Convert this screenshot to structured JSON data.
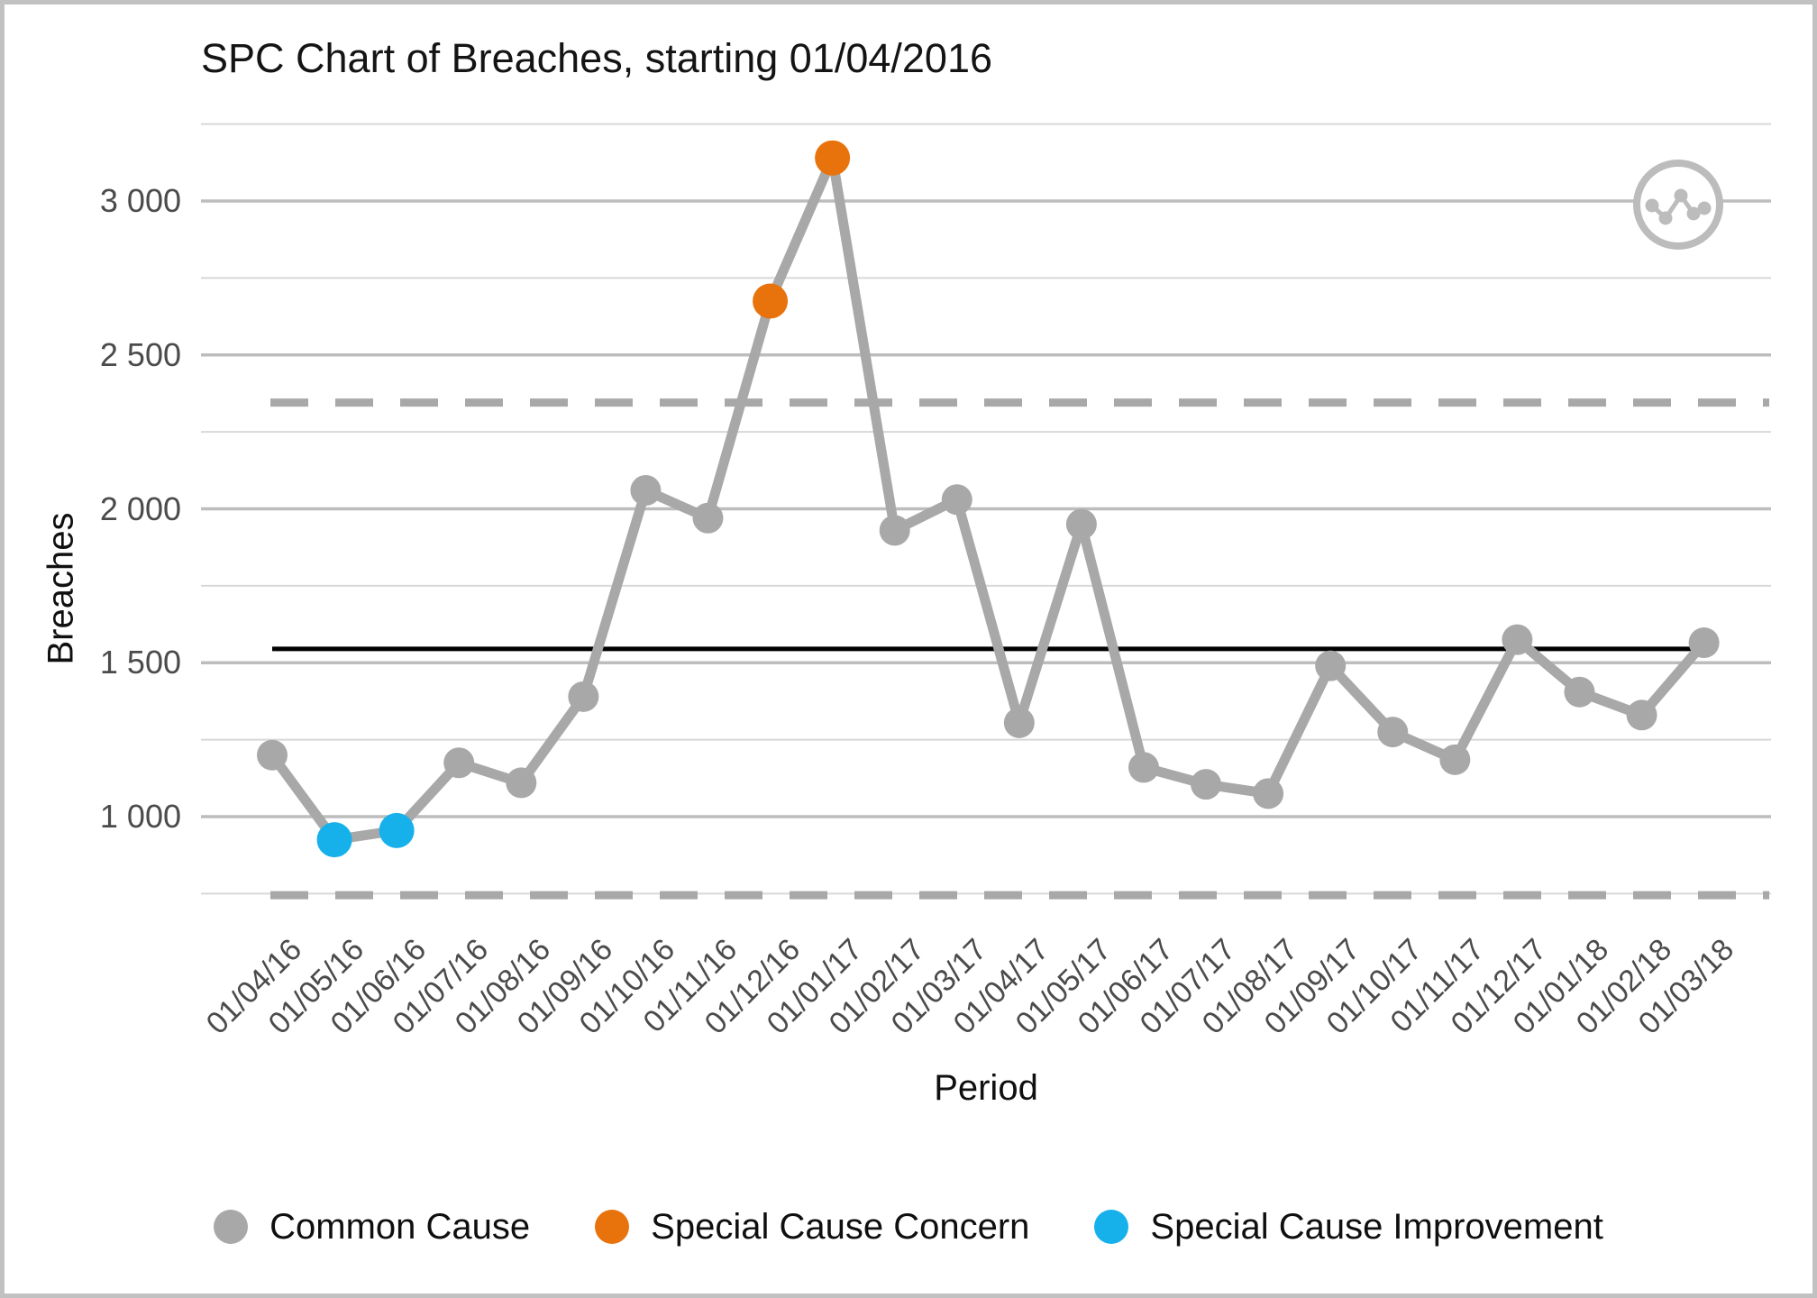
{
  "window": {
    "background": "#ffffff",
    "border_color": "#c1c1c1"
  },
  "chart_data": {
    "type": "line",
    "title": "SPC Chart of Breaches, starting 01/04/2016",
    "xlabel": "Period",
    "ylabel": "Breaches",
    "categories": [
      "01/04/16",
      "01/05/16",
      "01/06/16",
      "01/07/16",
      "01/08/16",
      "01/09/16",
      "01/10/16",
      "01/11/16",
      "01/12/16",
      "01/01/17",
      "01/02/17",
      "01/03/17",
      "01/04/17",
      "01/05/17",
      "01/06/17",
      "01/07/17",
      "01/08/17",
      "01/09/17",
      "01/10/17",
      "01/11/17",
      "01/12/17",
      "01/01/18",
      "01/02/18",
      "01/03/18"
    ],
    "series": [
      {
        "name": "Breaches",
        "values": [
          1200,
          925,
          955,
          1175,
          1110,
          1390,
          2060,
          1970,
          2675,
          3140,
          1930,
          2030,
          1305,
          1950,
          1160,
          1105,
          1075,
          1490,
          1275,
          1185,
          1575,
          1405,
          1330,
          1565
        ]
      }
    ],
    "point_types": [
      "common",
      "improvement",
      "improvement",
      "common",
      "common",
      "common",
      "common",
      "common",
      "concern",
      "concern",
      "common",
      "common",
      "common",
      "common",
      "common",
      "common",
      "common",
      "common",
      "common",
      "common",
      "common",
      "common",
      "common",
      "common"
    ],
    "mean_line": 1545,
    "upper_control_limit": 2345,
    "lower_control_limit": 745,
    "y_axis": {
      "tick_labels": [
        "1 000",
        "1 500",
        "2 000",
        "2 500",
        "3 000"
      ],
      "tick_values": [
        1000,
        1500,
        2000,
        2500,
        3000
      ],
      "minor_gridlines": [
        750,
        1250,
        1750,
        2250,
        2750,
        3250
      ],
      "range": [
        620,
        3260
      ]
    },
    "grid": "horizontal-only",
    "legend_position": "bottom",
    "legend": [
      {
        "label": "Common Cause",
        "color": "#A8A8A8"
      },
      {
        "label": "Special Cause Concern",
        "color": "#E8730C"
      },
      {
        "label": "Special Cause Improvement",
        "color": "#16B1EA"
      }
    ],
    "colors": {
      "common": "#A8A8A8",
      "concern": "#E8730C",
      "improvement": "#16B1EA",
      "line": "#A8A8A8",
      "mean_line": "#000000",
      "limit_lines": "#A8A8A8",
      "grid_major": "#BDBDBD",
      "grid_minor": "#D8D8D8",
      "axis_text": "#4B4B4B"
    },
    "icon": "line-chart-circle-logo"
  }
}
